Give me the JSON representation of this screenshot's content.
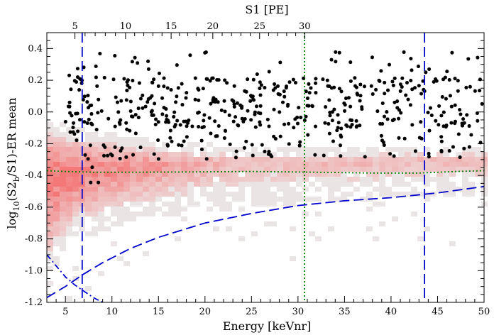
{
  "chart_data": {
    "type": "scatter",
    "xlabel": "Energy [keVnr]",
    "ylabel_main": "log",
    "ylabel_sub": "10",
    "ylabel_rest": "(S2",
    "ylabel_sub2": "b",
    "ylabel_end": "/S1)-ER mean",
    "x2label": "S1 [PE]",
    "xlim": [
      3,
      50
    ],
    "ylim": [
      -1.2,
      0.5
    ],
    "x_ticks": [
      "5",
      "10",
      "15",
      "20",
      "25",
      "30",
      "35",
      "40",
      "45",
      "50"
    ],
    "y_ticks": [
      "0.4",
      "0.2",
      "0.0",
      "-0.2",
      "-0.4",
      "-0.6",
      "-0.8",
      "-1.0",
      "-1.2"
    ],
    "x2_ticks": [
      "5",
      "10",
      "15",
      "20",
      "25",
      "30"
    ],
    "x2_tick_energy": [
      6.02,
      11.46,
      16.36,
      20.84,
      25.87,
      30.72
    ],
    "lines": {
      "er_mean_green": {
        "color": "#008000",
        "style": "dotted",
        "points": [
          [
            3,
            -0.37
          ],
          [
            5,
            -0.375
          ],
          [
            8,
            -0.38
          ],
          [
            12,
            -0.38
          ],
          [
            18,
            -0.378
          ],
          [
            25,
            -0.375
          ],
          [
            32,
            -0.38
          ],
          [
            38,
            -0.385
          ],
          [
            43,
            -0.385
          ],
          [
            47,
            -0.375
          ],
          [
            50,
            -0.37
          ]
        ]
      },
      "threshold_blue": {
        "color": "#0000cc",
        "style": "dashed",
        "points": [
          [
            3,
            -1.17
          ],
          [
            5,
            -1.1
          ],
          [
            7,
            -1.02
          ],
          [
            9,
            -0.95
          ],
          [
            12,
            -0.86
          ],
          [
            15,
            -0.79
          ],
          [
            20,
            -0.7
          ],
          [
            25,
            -0.64
          ],
          [
            30,
            -0.59
          ],
          [
            35,
            -0.56
          ],
          [
            40,
            -0.54
          ],
          [
            45,
            -0.51
          ],
          [
            50,
            -0.47
          ]
        ]
      },
      "lower_dashdot": {
        "color": "#0000cc",
        "style": "dashdot",
        "points": [
          [
            3,
            -0.9
          ],
          [
            4,
            -0.97
          ],
          [
            5,
            -1.04
          ],
          [
            6,
            -1.09
          ],
          [
            7,
            -1.13
          ],
          [
            8,
            -1.17
          ],
          [
            9,
            -1.2
          ]
        ]
      },
      "vline_left": {
        "color": "#0000cc",
        "style": "dashed",
        "x": 6.8
      },
      "vline_right": {
        "color": "#0000cc",
        "style": "dashed",
        "x": 43.6
      },
      "vline_green": {
        "color": "#008000",
        "style": "dotted",
        "x": 30.7
      }
    },
    "band": {
      "center": [
        [
          3,
          -0.4
        ],
        [
          6,
          -0.38
        ],
        [
          10,
          -0.34
        ],
        [
          15,
          -0.33
        ],
        [
          20,
          -0.32
        ],
        [
          30,
          -0.32
        ],
        [
          40,
          -0.31
        ],
        [
          50,
          -0.3
        ]
      ],
      "upper": [
        [
          3,
          -0.05
        ],
        [
          8,
          -0.12
        ],
        [
          15,
          -0.18
        ],
        [
          25,
          -0.22
        ],
        [
          35,
          -0.22
        ],
        [
          50,
          -0.22
        ]
      ],
      "lower": [
        [
          3,
          -1.05
        ],
        [
          6,
          -0.8
        ],
        [
          10,
          -0.72
        ],
        [
          15,
          -0.66
        ],
        [
          25,
          -0.6
        ],
        [
          35,
          -0.56
        ],
        [
          50,
          -0.52
        ]
      ]
    },
    "colors": {
      "marker": "#000000",
      "band_core": "#f47a7a",
      "band_faint": "#e6dede"
    }
  }
}
